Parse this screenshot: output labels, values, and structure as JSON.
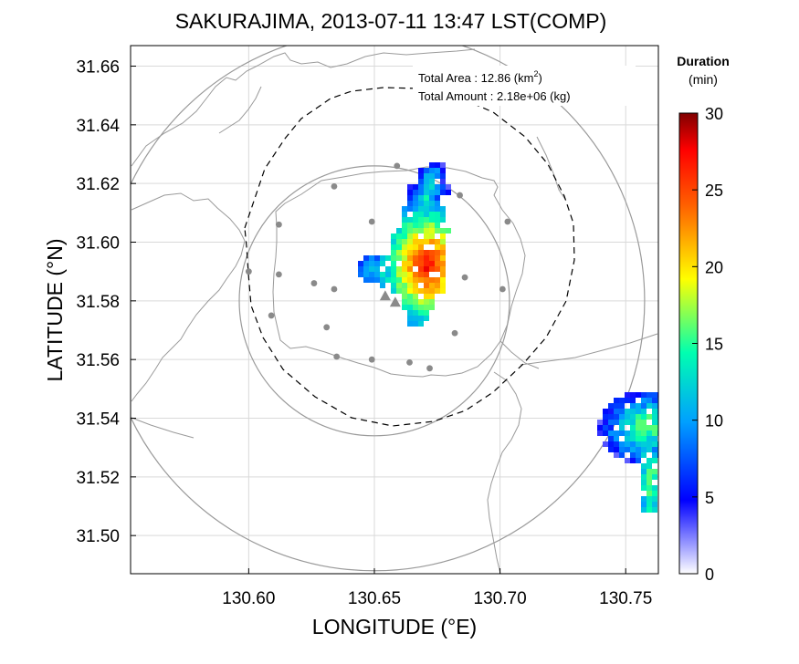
{
  "title": "SAKURAJIMA, 2013-07-11 13:47 LST(COMP)",
  "xlabel": "LONGITUDE (°E)",
  "ylabel": "LATITUDE (°N)",
  "stats": {
    "area_label": "Total Area   : 12.86 (km",
    "area_sup": "2",
    "area_close": ")",
    "amount_label": "Total Amount : 2.18e+06 (kg)"
  },
  "colorbar": {
    "title_line1": "Duration",
    "title_line2": "(min)",
    "min": 0,
    "max": 30,
    "ticks": [
      "0",
      "5",
      "10",
      "15",
      "20",
      "25",
      "30"
    ],
    "colors": [
      "#ffffff",
      "#0000ff",
      "#00b4ff",
      "#00ffc8",
      "#ffff00",
      "#ff8000",
      "#ff0000",
      "#800000"
    ]
  },
  "chart_data": {
    "type": "heatmap",
    "xlim": [
      130.553,
      130.763
    ],
    "ylim": [
      31.487,
      31.667
    ],
    "xticks": [
      "130.60",
      "130.65",
      "130.70",
      "130.75"
    ],
    "yticks": [
      "31.50",
      "31.52",
      "31.54",
      "31.56",
      "31.58",
      "31.60",
      "31.62",
      "31.64",
      "31.66"
    ],
    "grid": true,
    "rings": [
      {
        "center": [
          130.65,
          31.58
        ],
        "radius_deg_lat": 0.046
      },
      {
        "center": [
          130.65,
          31.58
        ],
        "radius_deg_lat": 0.092
      }
    ],
    "vent": {
      "lon": 130.6565,
      "lat": 31.5805
    },
    "stations": [
      [
        130.659,
        31.626
      ],
      [
        130.634,
        31.619
      ],
      [
        130.684,
        31.616
      ],
      [
        130.612,
        31.606
      ],
      [
        130.703,
        31.607
      ],
      [
        130.6,
        31.59
      ],
      [
        130.612,
        31.589
      ],
      [
        130.626,
        31.586
      ],
      [
        130.634,
        31.584
      ],
      [
        130.649,
        31.607
      ],
      [
        130.686,
        31.588
      ],
      [
        130.701,
        31.584
      ],
      [
        130.609,
        31.575
      ],
      [
        130.631,
        31.571
      ],
      [
        130.682,
        31.569
      ],
      [
        130.635,
        31.561
      ],
      [
        130.649,
        31.56
      ],
      [
        130.664,
        31.559
      ],
      [
        130.672,
        31.557
      ]
    ],
    "plume_main": {
      "core": [
        130.671,
        31.592
      ],
      "spine": [
        [
          130.673,
          31.623
        ],
        [
          130.67,
          31.612
        ],
        [
          130.668,
          31.6
        ],
        [
          130.668,
          31.588
        ],
        [
          130.667,
          31.574
        ]
      ],
      "max_minutes": 30
    },
    "plume_east": {
      "core": [
        130.758,
        31.537
      ],
      "max_minutes": 16
    }
  }
}
